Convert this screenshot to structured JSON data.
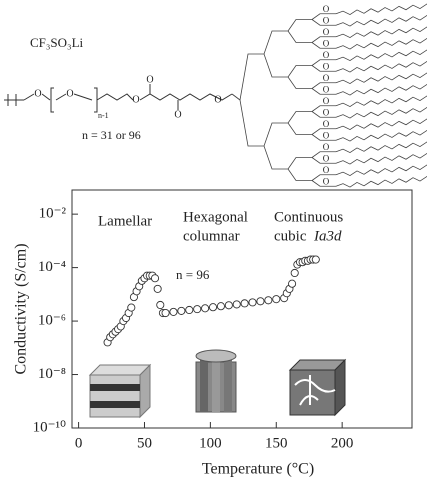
{
  "structure": {
    "salt": "CF₃SO₃Li",
    "repeat": "n-1",
    "oxygen": "O",
    "note": "n = 31 or 96"
  },
  "chart_data": {
    "type": "scatter",
    "log_y": true,
    "xlabel": "Temperature (°C)",
    "ylabel": "Conductivity (S/cm)",
    "annotations": [
      "Lamellar",
      "Hexagonal",
      "columnar",
      "Continuous",
      "cubic",
      "Ia3d",
      "n = 96"
    ],
    "x": [
      22,
      24,
      26,
      28,
      30,
      32,
      34,
      36,
      38,
      40,
      42,
      44,
      46,
      48,
      50,
      52,
      54,
      56,
      58,
      60,
      62,
      64,
      66,
      72,
      78,
      84,
      90,
      96,
      102,
      108,
      114,
      120,
      126,
      132,
      138,
      144,
      150,
      156,
      158,
      160,
      162,
      164,
      166,
      168,
      170,
      172,
      174,
      176,
      178,
      180
    ],
    "values": [
      1.6e-07,
      2.5e-07,
      3.2e-07,
      4e-07,
      5e-07,
      6.3e-07,
      1e-06,
      1.3e-06,
      2e-06,
      3.2e-06,
      7.9e-06,
      1.3e-05,
      2e-05,
      3.2e-05,
      4e-05,
      5e-05,
      5e-05,
      5e-05,
      4e-05,
      1.6e-05,
      4e-06,
      2e-06,
      2e-06,
      2.2e-06,
      2.4e-06,
      2.6e-06,
      2.8e-06,
      3e-06,
      3.3e-06,
      3.6e-06,
      3.9e-06,
      4.2e-06,
      4.6e-06,
      5e-06,
      5.5e-06,
      6e-06,
      6.6e-06,
      7.2e-06,
      1.1e-05,
      1.6e-05,
      2.5e-05,
      6.3e-05,
      0.00013,
      0.00016,
      0.00016,
      0.00018,
      0.00018,
      0.0002,
      0.0002,
      0.0002
    ],
    "color": "#333333",
    "xlim": [
      -5,
      253
    ],
    "ylim": [
      1e-10,
      0.08
    ],
    "xticks": [
      0,
      50,
      100,
      150,
      200
    ],
    "yticks": [
      {
        "value": 1e-10,
        "label": "10⁻¹⁰"
      },
      {
        "value": 1e-08,
        "label": "10⁻⁸"
      },
      {
        "value": 1e-06,
        "label": "10⁻⁶"
      },
      {
        "value": 0.0001,
        "label": "10⁻⁴"
      },
      {
        "value": 0.01,
        "label": "10⁻²"
      }
    ]
  }
}
